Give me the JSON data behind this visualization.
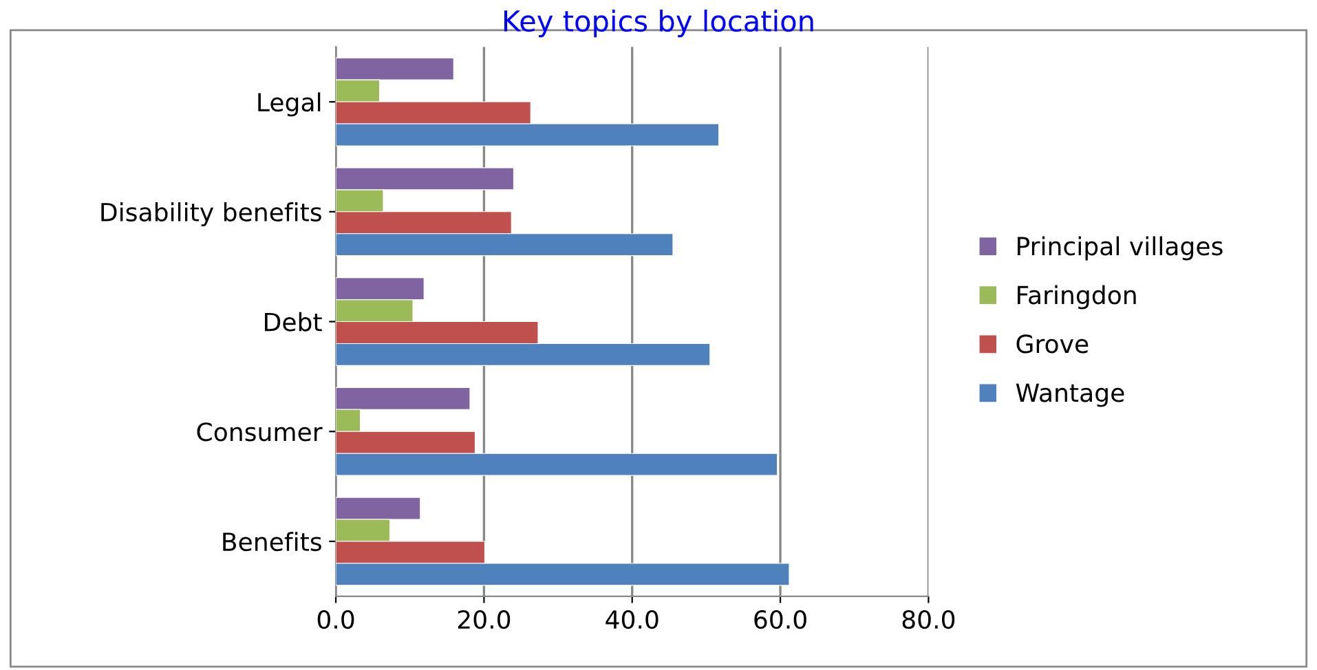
{
  "chart_data": {
    "type": "bar",
    "orientation": "horizontal",
    "title": "Key topics by location",
    "categories": [
      "Legal",
      "Disability benefits",
      "Debt",
      "Consumer",
      "Benefits"
    ],
    "series": [
      {
        "name": "Principal villages",
        "color": "#8064a2",
        "values": [
          15.9,
          24.0,
          11.9,
          18.1,
          11.4
        ]
      },
      {
        "name": "Faringdon",
        "color": "#9bbb59",
        "values": [
          5.9,
          6.4,
          10.4,
          3.3,
          7.3
        ]
      },
      {
        "name": "Grove",
        "color": "#c0504d",
        "values": [
          26.3,
          23.7,
          27.3,
          18.8,
          20.1
        ]
      },
      {
        "name": "Wantage",
        "color": "#4f81bd",
        "values": [
          51.7,
          45.5,
          50.5,
          59.6,
          61.2
        ]
      }
    ],
    "xlim": [
      0,
      80
    ],
    "xticks": [
      {
        "value": 0,
        "label": "0.0"
      },
      {
        "value": 20,
        "label": "20.0"
      },
      {
        "value": 40,
        "label": "40.0"
      },
      {
        "value": 60,
        "label": "60.0"
      },
      {
        "value": 80,
        "label": "80.0"
      }
    ],
    "grid": "x",
    "legend": "right"
  }
}
